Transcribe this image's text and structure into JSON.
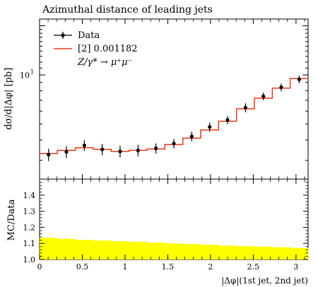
{
  "chart_data": [
    {
      "type": "line",
      "title": "Azimuthal distance of leading jets",
      "ylabel": "dσ/d|Δφ| [pb]",
      "yscale": "log",
      "ylim": [
        2.3,
        22
      ],
      "xlim": [
        0,
        3.1416
      ],
      "y_tick_label": "10",
      "y_tick_sup": "1",
      "legend_position": "top-left",
      "series": [
        {
          "name": "Data",
          "x": [
            0.105,
            0.314,
            0.524,
            0.733,
            0.942,
            1.152,
            1.361,
            1.571,
            1.78,
            1.99,
            2.199,
            2.409,
            2.618,
            2.827,
            3.037
          ],
          "y": [
            3.25,
            3.38,
            3.7,
            3.5,
            3.4,
            3.45,
            3.55,
            3.8,
            4.2,
            4.8,
            5.3,
            6.3,
            7.4,
            8.4,
            9.4
          ],
          "yerr": [
            0.28,
            0.28,
            0.28,
            0.28,
            0.28,
            0.28,
            0.25,
            0.25,
            0.28,
            0.3,
            0.3,
            0.4,
            0.4,
            0.45,
            0.5
          ]
        },
        {
          "name": "[2] 0.001182",
          "bin_edges": [
            0,
            0.209,
            0.419,
            0.628,
            0.838,
            1.047,
            1.257,
            1.466,
            1.676,
            1.885,
            2.094,
            2.304,
            2.513,
            2.723,
            2.932,
            3.1416
          ],
          "y": [
            3.3,
            3.45,
            3.58,
            3.5,
            3.4,
            3.45,
            3.52,
            3.75,
            4.1,
            4.6,
            5.2,
            6.2,
            7.2,
            8.3,
            9.5
          ]
        }
      ],
      "process_label": "Z/γ* → μ⁺μ⁻",
      "colors": {
        "data": "#000000",
        "mc": "#e8381a",
        "band": "#ffff00"
      }
    },
    {
      "type": "area",
      "ylabel": "MC/Data",
      "xlabel": "|Δφ|(1st jet, 2nd jet)",
      "ylim": [
        1.0,
        1.5
      ],
      "xlim": [
        0,
        3.1416
      ],
      "x_ticks": [
        "0",
        "0.5",
        "1",
        "1.5",
        "2",
        "2.5",
        "3"
      ],
      "y_ticks": [
        "1.0",
        "1.1",
        "1.2",
        "1.3",
        "1.4"
      ],
      "band_upper": [
        1.135,
        1.128,
        1.122,
        1.118,
        1.114,
        1.11,
        1.105,
        1.1,
        1.096,
        1.092,
        1.087,
        1.083,
        1.08,
        1.076,
        1.072
      ],
      "band_lower": [
        1.0,
        1.0,
        1.0,
        1.0,
        1.0,
        1.0,
        1.0,
        1.0,
        1.0,
        1.0,
        1.0,
        1.0,
        1.0,
        1.0,
        1.0
      ]
    }
  ]
}
